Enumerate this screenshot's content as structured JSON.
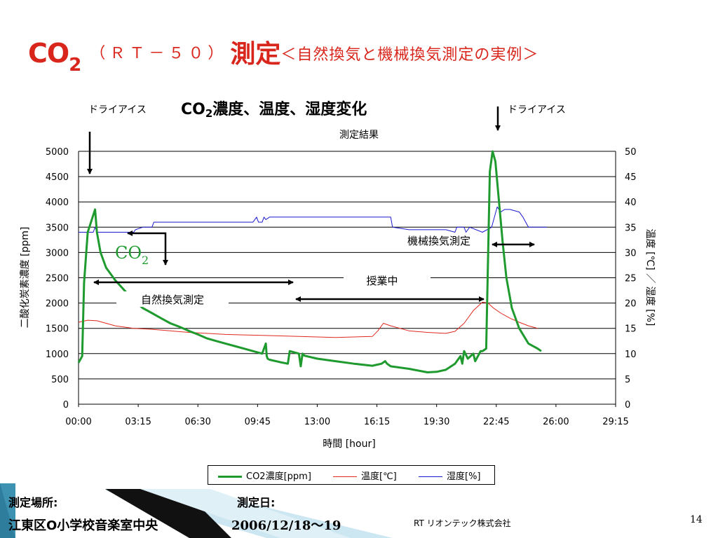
{
  "slide": {
    "title_co": "CO",
    "title_sub": "2",
    "title_model": "（ＲＴ－５０）",
    "title_measure": "測定",
    "title_desc": "＜自然換気と機械換気測定の実例＞",
    "chart_heading_co": "CO",
    "chart_heading_sub": "2",
    "chart_heading_rest": "濃度、温度、湿度変化",
    "dry_ice_left": "ドライアイス",
    "dry_ice_right": "ドライアイス",
    "location_label": "測定場所:",
    "location_value": "江東区O小学校音楽室中央",
    "date_label": "測定日:",
    "date_value": "2006/12/18〜19",
    "company": "RT リオンテック株式会社",
    "page_number": "14"
  },
  "annotations": {
    "co2_label_main": "CO",
    "co2_label_sub": "2",
    "natural_ventilation": "自然換気測定",
    "in_class": "授業中",
    "mechanical_ventilation": "機械換気測定"
  },
  "colors": {
    "title_red": "#d9261c",
    "co2_green": "#1e9a2e",
    "temp_red": "#e0281e",
    "humid_blue": "#1a1ad0",
    "footer_teal": "#2f7d9c"
  },
  "chart_data": {
    "type": "line",
    "title": "測定結果",
    "xlabel": "時間 [hour]",
    "ylabel": "二酸化炭素濃度 [ppm]",
    "y2label": "温度 [℃] ／ 湿度 [%]",
    "x_ticks": [
      "00:00",
      "03:15",
      "06:30",
      "09:45",
      "13:00",
      "16:15",
      "19:30",
      "22:45",
      "26:00",
      "29:15"
    ],
    "xlim": [
      0,
      29.25
    ],
    "ylim": [
      0,
      5000
    ],
    "y_ticks": [
      0,
      500,
      1000,
      1500,
      2000,
      2500,
      3000,
      3500,
      4000,
      4500,
      5000
    ],
    "y2lim": [
      0,
      50
    ],
    "y2_ticks": [
      0,
      5,
      10,
      15,
      20,
      25,
      30,
      35,
      40,
      45,
      50
    ],
    "grid": "horizontal",
    "legend_position": "bottom",
    "series": [
      {
        "name": "CO2濃度[ppm]",
        "axis": "left",
        "x": [
          0,
          0.2,
          0.3,
          0.5,
          0.9,
          1.0,
          1.2,
          1.5,
          2.0,
          2.5,
          3.0,
          3.5,
          4.0,
          4.5,
          5.0,
          5.5,
          6.0,
          6.5,
          7.0,
          7.5,
          8.0,
          8.5,
          9.0,
          9.5,
          10.0,
          10.2,
          10.25,
          10.3,
          10.4,
          11.0,
          11.4,
          11.5,
          12.0,
          12.1,
          12.2,
          12.3,
          13.0,
          14.0,
          15.0,
          16.0,
          16.5,
          16.7,
          16.8,
          17.0,
          18.0,
          19.0,
          19.5,
          20.0,
          20.5,
          20.8,
          20.9,
          21.0,
          21.2,
          21.5,
          21.6,
          21.9,
          22.0,
          22.2,
          22.4,
          22.55,
          22.7,
          22.9,
          23.1,
          23.3,
          23.6,
          24.0,
          24.5,
          25.0,
          25.2
        ],
        "values": [
          820,
          950,
          2400,
          3400,
          3850,
          3400,
          3000,
          2700,
          2450,
          2250,
          2050,
          1900,
          1800,
          1700,
          1600,
          1530,
          1450,
          1380,
          1300,
          1250,
          1200,
          1150,
          1100,
          1050,
          1000,
          1200,
          950,
          900,
          880,
          830,
          800,
          1050,
          1000,
          750,
          1000,
          960,
          900,
          850,
          800,
          760,
          800,
          850,
          800,
          750,
          700,
          630,
          640,
          680,
          800,
          950,
          800,
          1050,
          900,
          1000,
          850,
          1050,
          1050,
          1100,
          4600,
          5000,
          4800,
          4000,
          3200,
          2500,
          1900,
          1500,
          1200,
          1100,
          1050
        ]
      },
      {
        "name": "温度[℃]",
        "axis": "right",
        "x": [
          0,
          0.5,
          1.0,
          1.5,
          2.0,
          3.0,
          4.0,
          5.0,
          6.0,
          7.0,
          8.0,
          9.0,
          10.0,
          11.0,
          12.0,
          13.0,
          14.0,
          15.0,
          16.0,
          16.3,
          16.6,
          17.0,
          17.5,
          18.0,
          19.0,
          20.0,
          20.5,
          21.0,
          21.5,
          22.0,
          22.3,
          22.6,
          23.0,
          23.5,
          24.0,
          24.5,
          25.0
        ],
        "values": [
          16.2,
          16.6,
          16.5,
          16.0,
          15.5,
          15.0,
          14.8,
          14.5,
          14.2,
          14.0,
          13.8,
          13.7,
          13.6,
          13.5,
          13.4,
          13.3,
          13.2,
          13.3,
          13.4,
          14.5,
          16.0,
          15.5,
          15.0,
          14.5,
          14.2,
          14.0,
          14.4,
          16.0,
          18.5,
          20.2,
          20.0,
          19.0,
          18.0,
          17.0,
          16.2,
          15.5,
          15.0
        ]
      },
      {
        "name": "湿度[%]",
        "axis": "right",
        "x": [
          0,
          0.8,
          0.9,
          1.0,
          3.0,
          3.1,
          3.5,
          4.0,
          4.1,
          6.0,
          6.1,
          9.5,
          9.7,
          9.8,
          10.0,
          10.1,
          10.2,
          10.4,
          10.5,
          12.0,
          16.0,
          17.0,
          17.1,
          18.0,
          19.0,
          20.0,
          20.5,
          20.6,
          21.0,
          21.1,
          21.3,
          22.0,
          22.5,
          22.8,
          23.0,
          23.2,
          23.5,
          24.0,
          24.2,
          24.5,
          25.0,
          25.5
        ],
        "values": [
          34,
          34,
          35,
          34,
          34,
          34.5,
          35,
          35,
          36,
          36,
          36,
          36,
          37,
          36,
          36,
          37,
          36.5,
          37,
          37,
          37,
          37,
          37,
          35,
          34.5,
          34.5,
          34.5,
          34,
          35,
          35,
          34,
          35,
          34,
          35,
          39,
          38,
          38.5,
          38.5,
          38,
          37,
          35,
          35,
          35
        ]
      }
    ]
  }
}
